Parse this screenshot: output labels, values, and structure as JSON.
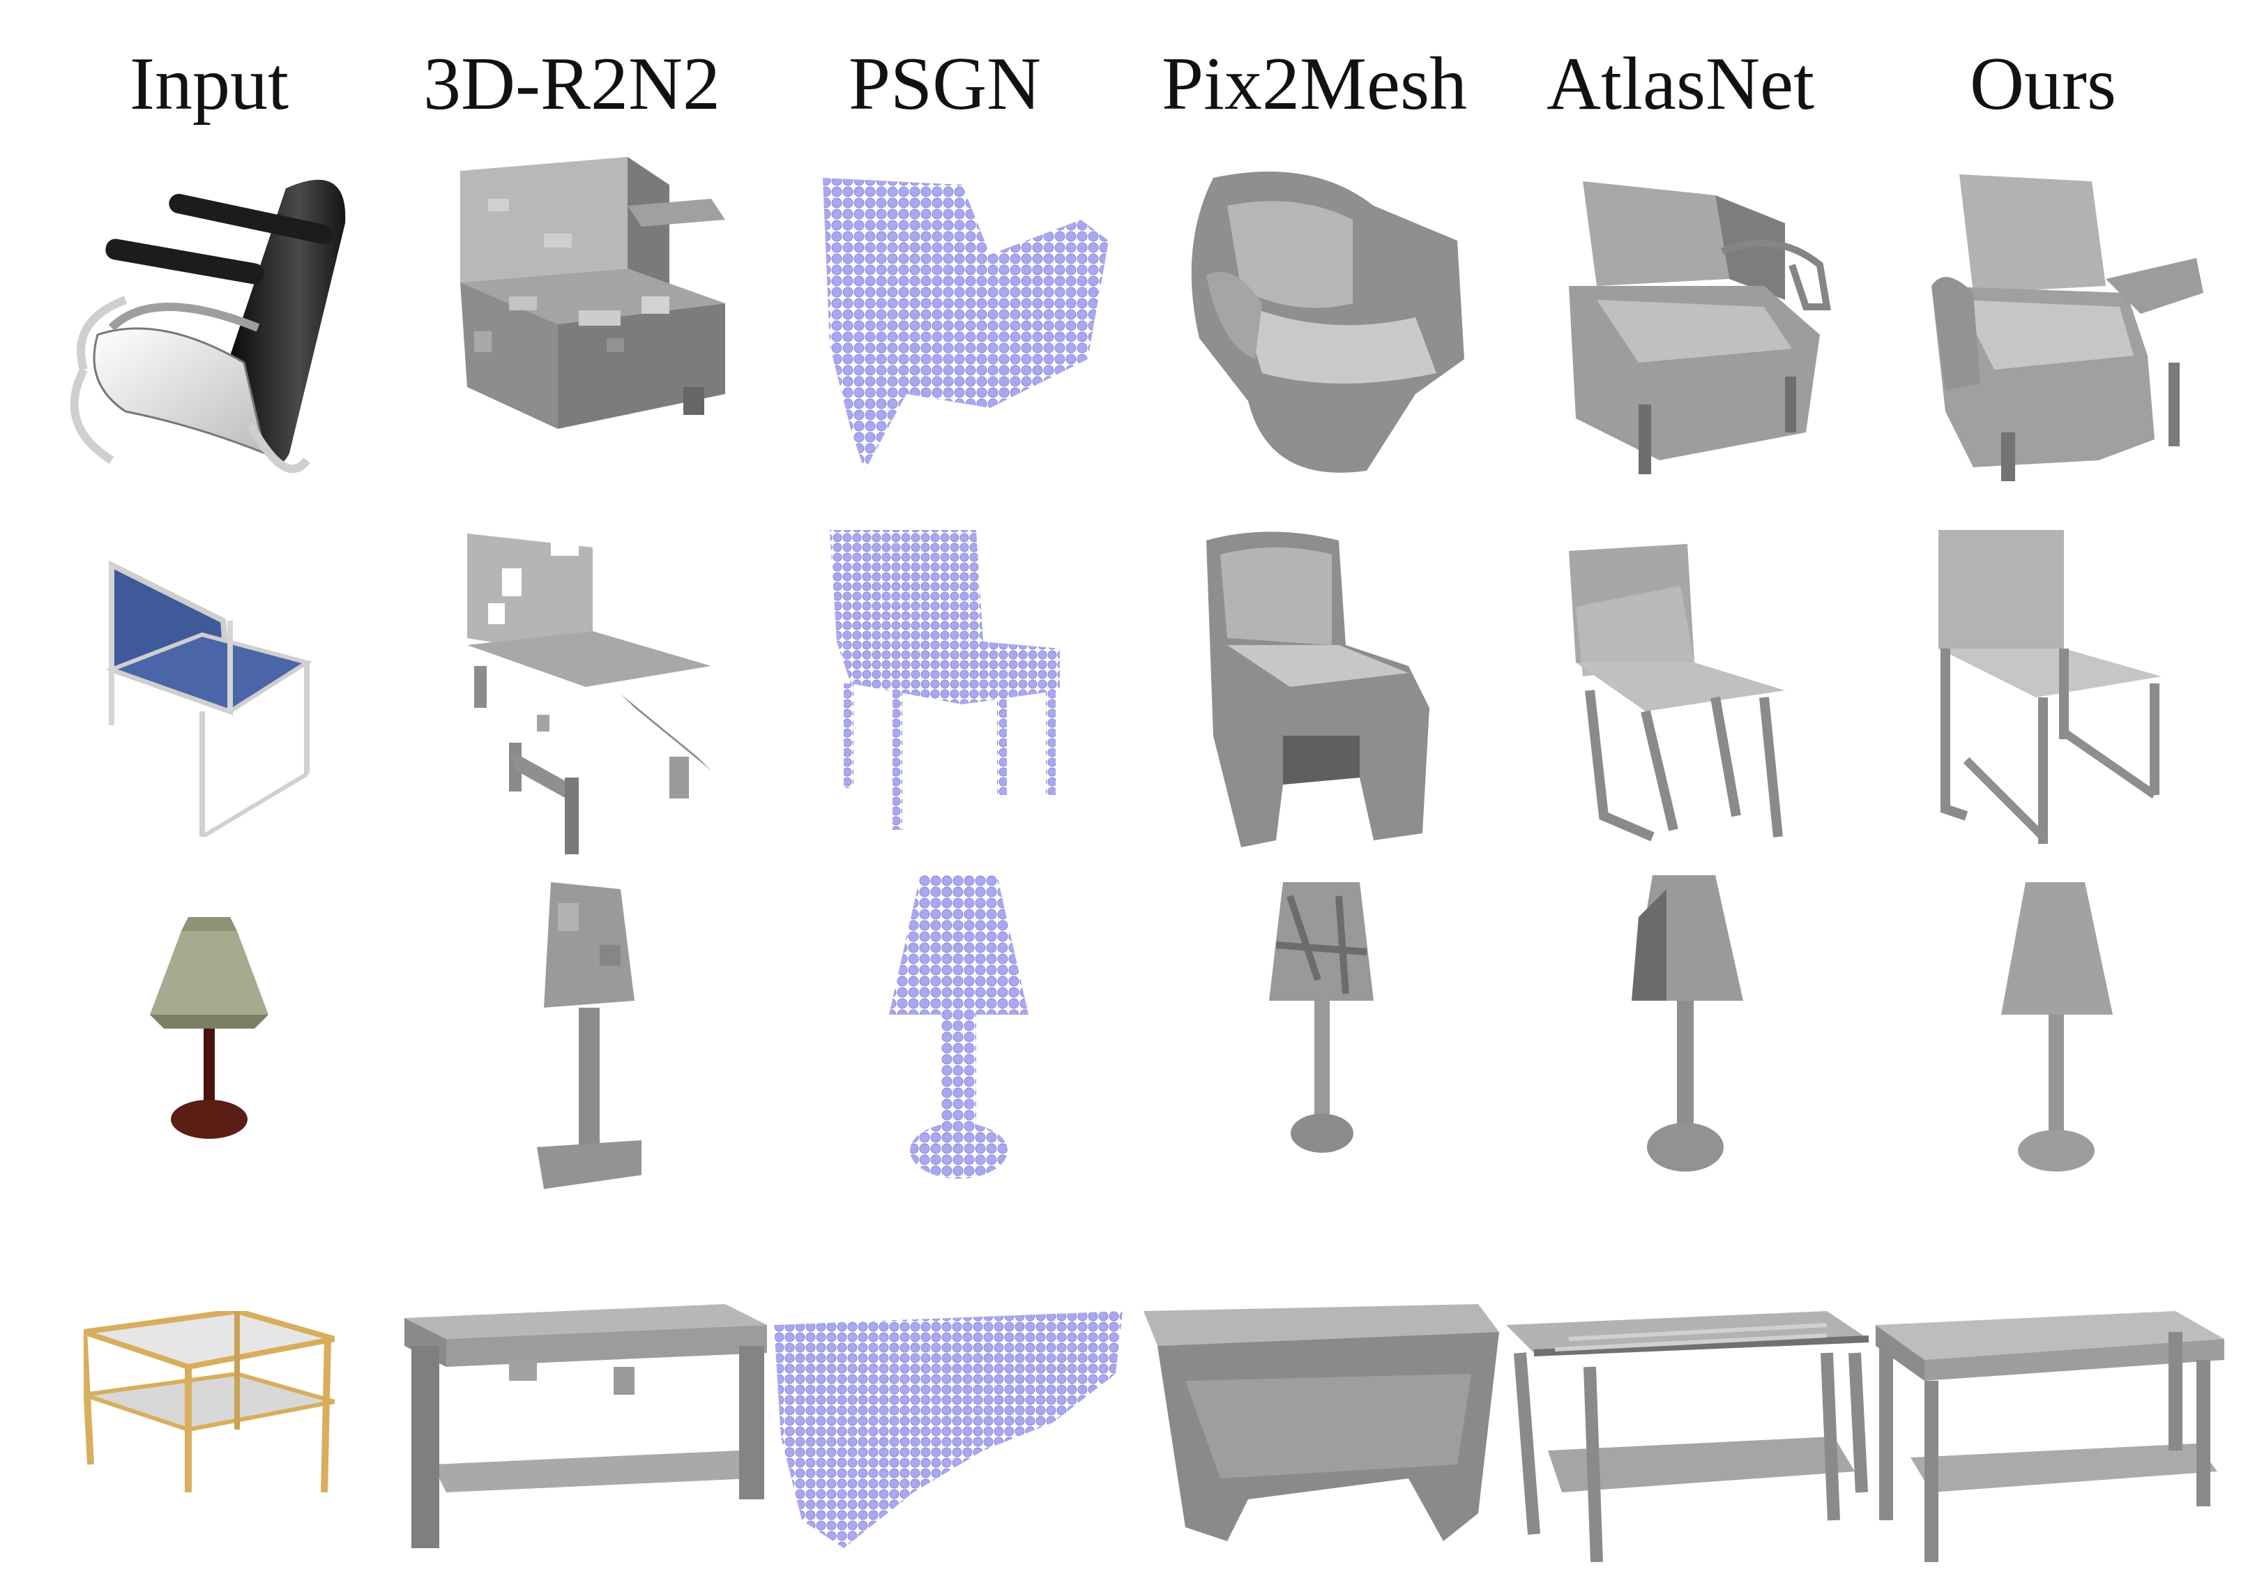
{
  "columns": [
    {
      "key": "input",
      "label": "Input"
    },
    {
      "key": "r2n2",
      "label": "3D-R2N2"
    },
    {
      "key": "psgn",
      "label": "PSGN"
    },
    {
      "key": "p2m",
      "label": "Pix2Mesh"
    },
    {
      "key": "atlas",
      "label": "AtlasNet"
    },
    {
      "key": "ours",
      "label": "Ours"
    }
  ],
  "rows": [
    {
      "object": "armchair"
    },
    {
      "object": "chair"
    },
    {
      "object": "lamp"
    },
    {
      "object": "table"
    }
  ],
  "colors": {
    "mesh_gray": "#9a9a9a",
    "mesh_dark": "#6f6f6f",
    "point_blue": "#a9a8ef",
    "input_blue": "#3f5a9a",
    "input_black": "#1b1b1b",
    "input_olive": "#a7aa8f",
    "input_brown": "#5a1e14",
    "input_wood": "#d7ae5c"
  }
}
